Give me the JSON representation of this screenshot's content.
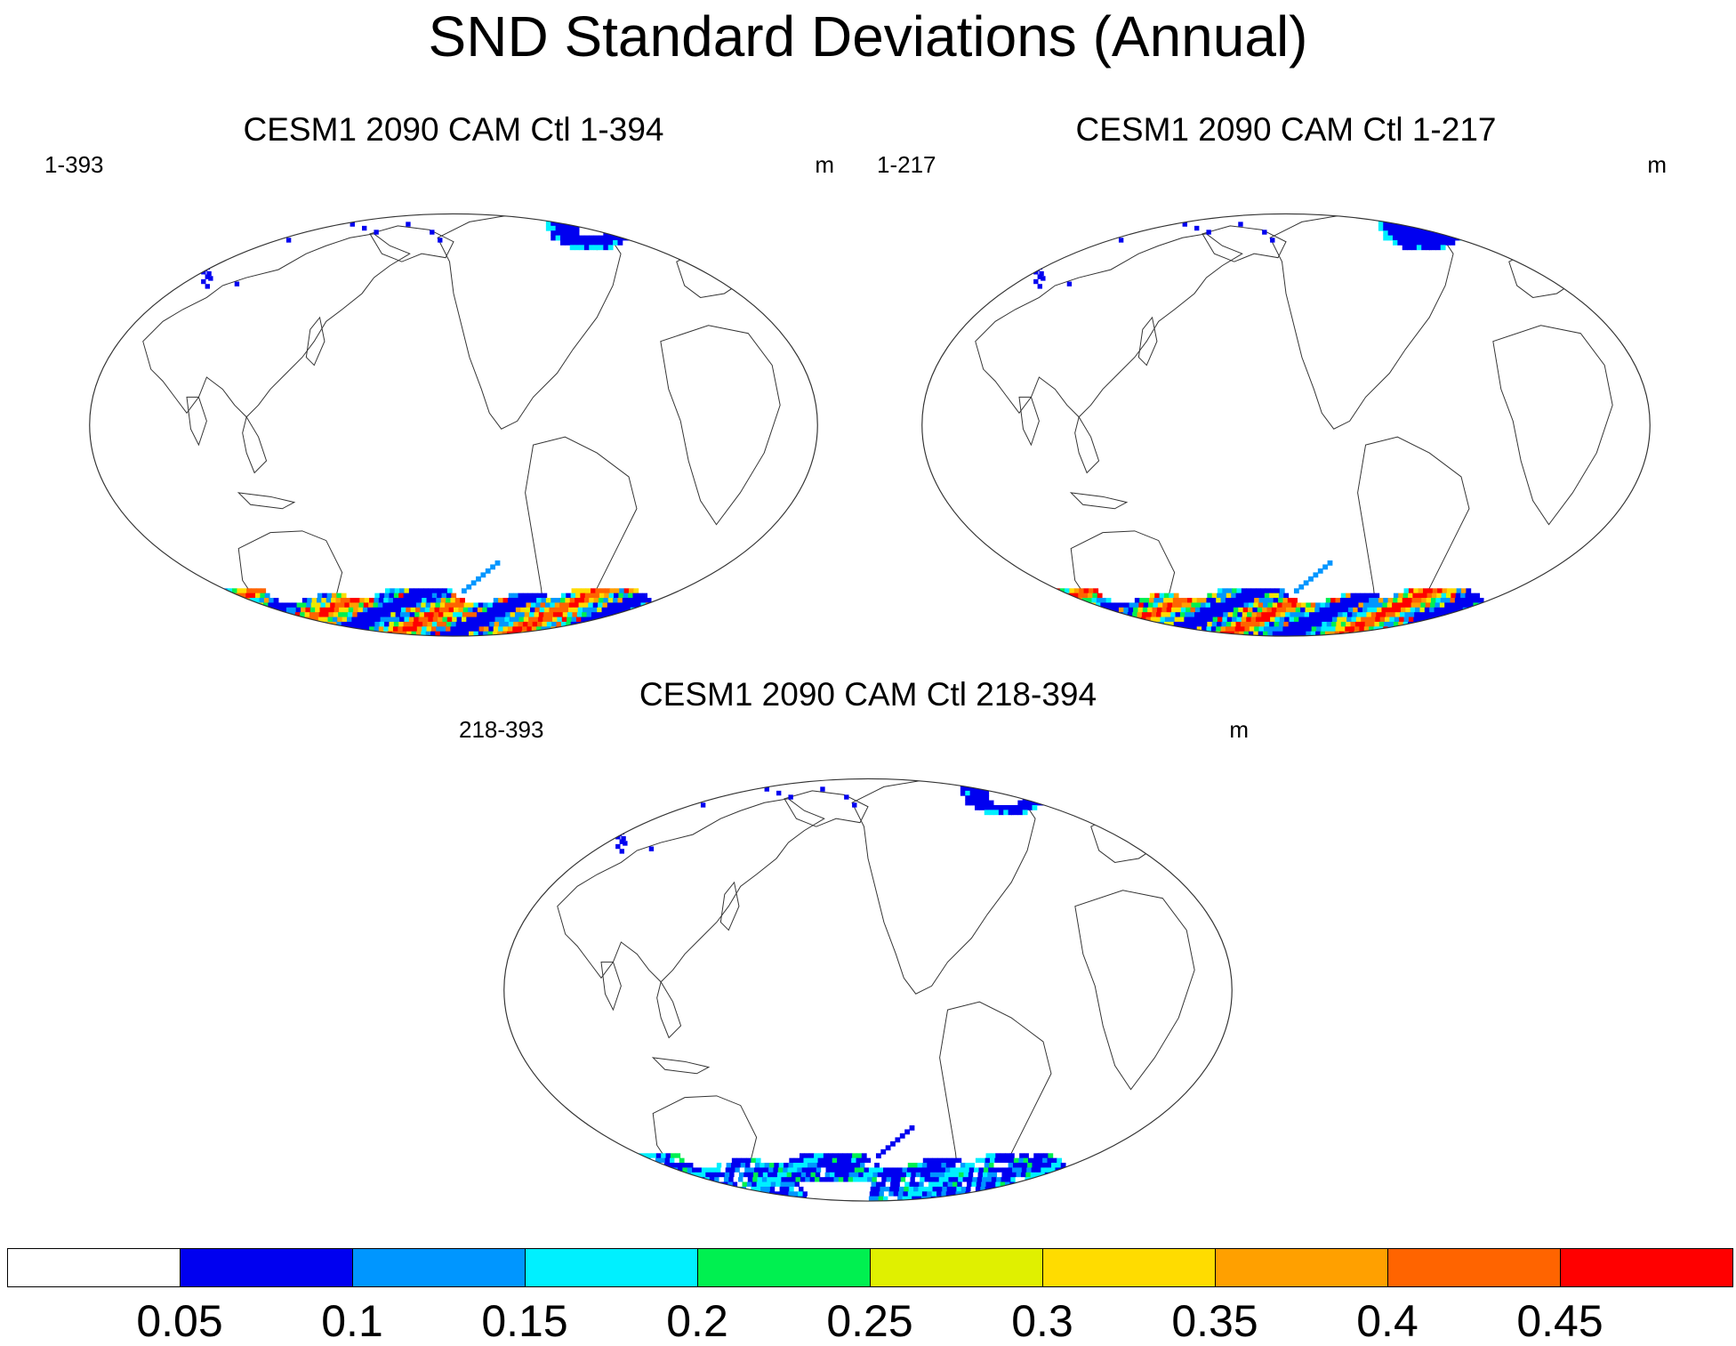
{
  "title": "SND Standard Deviations (Annual)",
  "panels": [
    {
      "title": "CESM1 2090 CAM Ctl 1-394",
      "left_label": "1-393",
      "right_label": "m",
      "variant": "a"
    },
    {
      "title": "CESM1 2090 CAM Ctl 1-217",
      "left_label": "1-217",
      "right_label": "m",
      "variant": "b"
    },
    {
      "title": "CESM1 2090 CAM Ctl 218-394",
      "left_label": "218-393",
      "right_label": "m",
      "variant": "c"
    }
  ],
  "colorbar": {
    "colors": [
      "#ffffff",
      "#0000f0",
      "#0096ff",
      "#00f0ff",
      "#00f050",
      "#e0f000",
      "#ffdc00",
      "#ffa000",
      "#ff6400",
      "#ff0000"
    ],
    "labels": [
      "0.05",
      "0.1",
      "0.15",
      "0.2",
      "0.25",
      "0.3",
      "0.35",
      "0.4",
      "0.45"
    ]
  }
}
